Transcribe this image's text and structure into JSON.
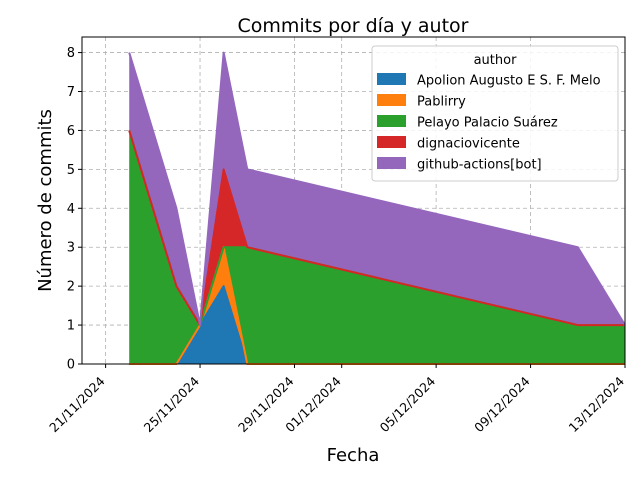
{
  "chart_data": {
    "type": "area",
    "stacked": true,
    "title": "Commits por día y autor",
    "xlabel": "Fecha",
    "ylabel": "Número de commits",
    "ylim": [
      0,
      8.4
    ],
    "xlim": [
      "2024-11-20",
      "2024-12-13"
    ],
    "x_ticks": [
      "2024-11-21",
      "2024-11-25",
      "2024-11-29",
      "2024-12-01",
      "2024-12-05",
      "2024-12-09",
      "2024-12-13"
    ],
    "x_tick_labels": [
      "21/11/2024",
      "25/11/2024",
      "29/11/2024",
      "01/12/2024",
      "05/12/2024",
      "09/12/2024",
      "13/12/2024"
    ],
    "y_ticks": [
      0,
      1,
      2,
      3,
      4,
      5,
      6,
      7,
      8
    ],
    "grid": "dashed, both axes",
    "legend_title": "author",
    "legend_position": "top-right",
    "x": [
      "2024-11-22",
      "2024-11-24",
      "2024-11-25",
      "2024-11-26",
      "2024-11-27",
      "2024-12-11",
      "2024-12-13"
    ],
    "series": [
      {
        "name": "Apolion Augusto E S. F. Melo",
        "color": "#1f77b4",
        "values": [
          0,
          0,
          1,
          2,
          0,
          0,
          0
        ]
      },
      {
        "name": "Pablirry",
        "color": "#ff7f0e",
        "values": [
          0,
          0,
          0,
          1,
          0,
          0,
          0
        ]
      },
      {
        "name": "Pelayo Palacio Suárez",
        "color": "#2ca02c",
        "values": [
          6,
          2,
          0,
          0,
          3,
          1,
          1
        ]
      },
      {
        "name": "dignaciovicente",
        "color": "#d62728",
        "values": [
          0,
          0,
          0,
          2,
          0,
          0,
          0
        ]
      },
      {
        "name": "github-actions[bot]",
        "color": "#9467bd",
        "values": [
          2,
          2,
          0,
          3,
          2,
          2,
          0
        ]
      }
    ]
  }
}
